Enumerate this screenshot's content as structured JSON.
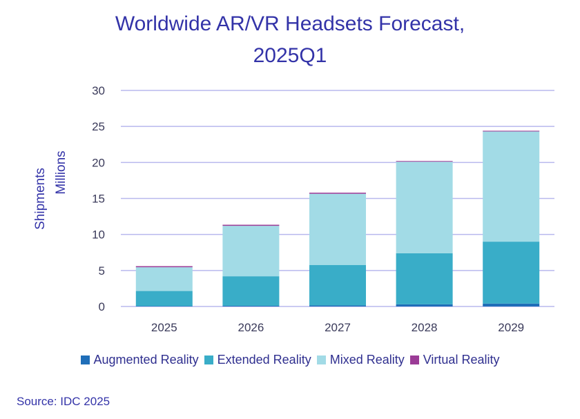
{
  "chart_data": {
    "type": "bar",
    "stacked": true,
    "title_lines": [
      "Worldwide AR/VR Headsets Forecast,",
      "2025Q1"
    ],
    "ylabel_lines": [
      "Shipments",
      "Millions"
    ],
    "xlabel": "",
    "ylim": [
      0,
      30
    ],
    "yticks": [
      0,
      5,
      10,
      15,
      20,
      25,
      30
    ],
    "grid": true,
    "legend_position": "bottom",
    "categories": [
      "2025",
      "2026",
      "2027",
      "2028",
      "2029"
    ],
    "series": [
      {
        "name": "Augmented Reality",
        "color": "#1f6eb8",
        "values": [
          0.05,
          0.1,
          0.15,
          0.3,
          0.4
        ]
      },
      {
        "name": "Extended Reality",
        "color": "#39adc8",
        "values": [
          2.1,
          4.1,
          5.6,
          7.1,
          8.6
        ]
      },
      {
        "name": "Mixed Reality",
        "color": "#a2dbe6",
        "values": [
          3.3,
          7.0,
          9.9,
          12.7,
          15.3
        ]
      },
      {
        "name": "Virtual Reality",
        "color": "#9b3b96",
        "values": [
          0.15,
          0.15,
          0.15,
          0.1,
          0.1
        ]
      }
    ]
  },
  "source": "Source: IDC 2025"
}
